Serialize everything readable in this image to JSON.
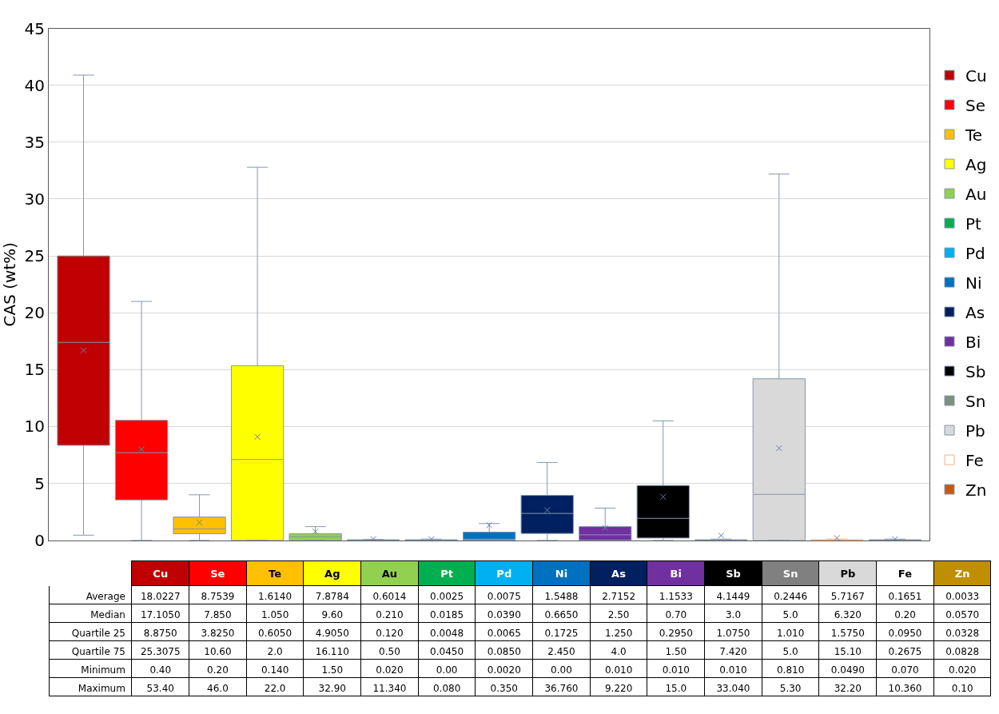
{
  "chart_data": [
    {
      "type": "box",
      "ylabel": "CAS (wt%)",
      "categories": [
        null
      ],
      "ylim": [
        0,
        45
      ],
      "yticks": [
        0,
        5,
        10,
        15,
        20,
        25,
        30,
        35,
        40,
        45
      ],
      "grid": "y",
      "legend": "right",
      "tick_labels": "y",
      "marker": "cross",
      "series": [
        {
          "name": "Cu",
          "color": "#c00000",
          "boxes": [
            {
              "low": 0.45,
              "q1": 8.35,
              "median": 17.4,
              "q3": 25.0,
              "high": 40.9,
              "mean": 16.7
            }
          ]
        },
        {
          "name": "Se",
          "color": "#ff0000",
          "boxes": [
            {
              "low": 0,
              "q1": 3.55,
              "median": 7.7,
              "q3": 10.55,
              "high": 21.0,
              "mean": 8.0
            }
          ]
        },
        {
          "name": "Te",
          "color": "#ffc000",
          "boxes": [
            {
              "low": 0,
              "q1": 0.57,
              "median": 1.0,
              "q3": 2.05,
              "high": 4.0,
              "mean": 1.57
            }
          ]
        },
        {
          "name": "Ag",
          "color": "#ffff00",
          "boxes": [
            {
              "low": 0,
              "q1": 0,
              "median": 7.1,
              "q3": 15.35,
              "high": 32.8,
              "mean": 9.1
            }
          ]
        },
        {
          "name": "Au",
          "color": "#92d050",
          "boxes": [
            {
              "low": 0,
              "q1": 0,
              "median": 0.3,
              "q3": 0.57,
              "high": 1.2,
              "mean": 0.77
            }
          ]
        },
        {
          "name": "Pt",
          "color": "#00b050",
          "boxes": [
            {
              "low": 0,
              "q1": 0,
              "median": 0,
              "q3": 0.05,
              "high": 0.08,
              "mean": 0.1
            }
          ]
        },
        {
          "name": "Pd",
          "color": "#00b0f0",
          "boxes": [
            {
              "low": 0,
              "q1": 0,
              "median": 0,
              "q3": 0.05,
              "high": 0.1,
              "mean": 0.1
            }
          ]
        },
        {
          "name": "Ni",
          "color": "#0070c0",
          "boxes": [
            {
              "low": 0,
              "q1": 0,
              "median": 0.1,
              "q3": 0.72,
              "high": 1.47,
              "mean": 1.33
            }
          ]
        },
        {
          "name": "As",
          "color": "#002060",
          "boxes": [
            {
              "low": 0,
              "q1": 0.6,
              "median": 2.36,
              "q3": 3.95,
              "high": 6.84,
              "mean": 2.65
            }
          ]
        },
        {
          "name": "Bi",
          "color": "#7030a0",
          "boxes": [
            {
              "low": 0,
              "q1": 0,
              "median": 0.48,
              "q3": 1.2,
              "high": 2.83,
              "mean": 1.1
            }
          ]
        },
        {
          "name": "Sb",
          "color": "#000000",
          "boxes": [
            {
              "low": 0,
              "q1": 0.2,
              "median": 1.93,
              "q3": 4.82,
              "high": 10.5,
              "mean": 3.82
            }
          ]
        },
        {
          "name": "Sn",
          "color": "#7f8f7f",
          "boxes": [
            {
              "low": 0,
              "q1": 0,
              "median": 0,
              "q3": 0.05,
              "high": 0.1,
              "mean": 0.42
            }
          ]
        },
        {
          "name": "Pb",
          "color": "#d9d9d9",
          "boxes": [
            {
              "low": 0,
              "q1": 0,
              "median": 4.04,
              "q3": 14.2,
              "high": 32.2,
              "mean": 8.1
            }
          ]
        },
        {
          "name": "Fe",
          "color": "#ffffff",
          "boxes": [
            {
              "low": 0,
              "q1": 0,
              "median": 0,
              "q3": 0.05,
              "high": 0.1,
              "mean": 0.2
            }
          ]
        },
        {
          "name": "Zn",
          "color": "#c55a11",
          "boxes": [
            {
              "low": 0,
              "q1": 0,
              "median": 0,
              "q3": 0.05,
              "high": 0.1,
              "mean": 0.1
            }
          ]
        }
      ]
    },
    {
      "type": "other",
      "categories": [
        "Cu",
        "Se",
        "Te",
        "Ag",
        "Au",
        "Pt",
        "Pd",
        "Ni",
        "As",
        "Bi",
        "Sb",
        "Sn",
        "Pb",
        "Fe",
        "Zn"
      ],
      "colors": [
        "#c00000",
        "#ff0000",
        "#ffc000",
        "#ffff00",
        "#92d050",
        "#00b050",
        "#00b0f0",
        "#0070c0",
        "#002060",
        "#7030a0",
        "#000000",
        "#808080",
        "#d9d9d9",
        "#ffffff",
        "#bf8f00"
      ],
      "y_categories": [
        "Average",
        "Median",
        "Quartile 25",
        "Quartile 75",
        "Minimum",
        "Maximum"
      ],
      "cell_labels": [
        [
          "18.0227",
          "8.7539",
          "1.6140",
          "7.8784",
          "0.6014",
          "0.0025",
          "0.0075",
          "1.5488",
          "2.7152",
          "1.1533",
          "4.1449",
          "0.2446",
          "5.7167",
          "0.1651",
          "0.0033"
        ],
        [
          "17.1050",
          "7.850",
          "1.050",
          "9.60",
          "0.210",
          "0.0185",
          "0.0390",
          "0.6650",
          "2.50",
          "0.70",
          "3.0",
          "5.0",
          "6.320",
          "0.20",
          "0.0570"
        ],
        [
          "8.8750",
          "3.8250",
          "0.6050",
          "4.9050",
          "0.120",
          "0.0048",
          "0.0065",
          "0.1725",
          "1.250",
          "0.2950",
          "1.0750",
          "1.010",
          "1.5750",
          "0.0950",
          "0.0328"
        ],
        [
          "25.3075",
          "10.60",
          "2.0",
          "16.110",
          "0.50",
          "0.0450",
          "0.0850",
          "2.450",
          "4.0",
          "1.50",
          "7.420",
          "5.0",
          "15.10",
          "0.2675",
          "0.0828"
        ],
        [
          "0.40",
          "0.20",
          "0.140",
          "1.50",
          "0.020",
          "0.00",
          "0.0020",
          "0.00",
          "0.010",
          "0.010",
          "0.010",
          "0.810",
          "0.0490",
          "0.070",
          "0.020"
        ],
        [
          "53.40",
          "46.0",
          "22.0",
          "32.90",
          "11.340",
          "0.080",
          "0.350",
          "36.760",
          "9.220",
          "15.0",
          "33.040",
          "5.30",
          "32.20",
          "10.360",
          "0.10"
        ]
      ]
    }
  ]
}
